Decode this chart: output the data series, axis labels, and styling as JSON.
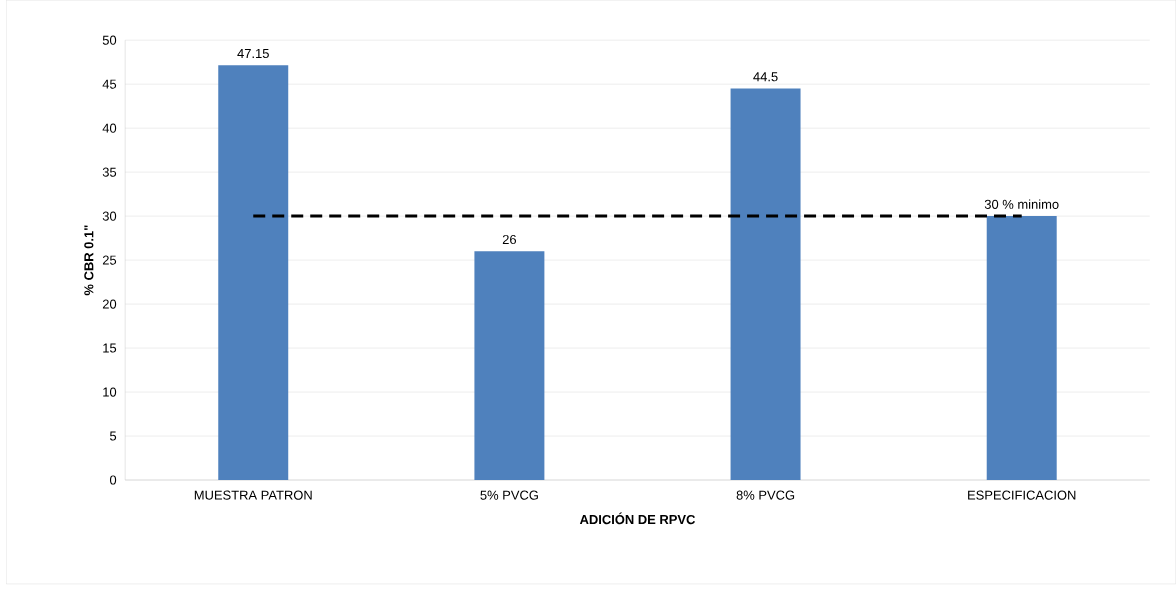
{
  "chart_data": {
    "type": "bar",
    "categories": [
      "MUESTRA PATRON",
      "5% PVCG",
      "8% PVCG",
      "ESPECIFICACION"
    ],
    "values": [
      47.15,
      26,
      44.5,
      30
    ],
    "value_labels": [
      "47.15",
      "26",
      "44.5",
      "30 % minimo"
    ],
    "color": "#4f81bd",
    "xlabel": "ADICIÓN DE RPVC",
    "ylabel": "% CBR 0.1\"",
    "ylim": [
      0,
      50
    ],
    "yticks": [
      0,
      5,
      10,
      15,
      20,
      25,
      30,
      35,
      40,
      45,
      50
    ],
    "grid": "y",
    "ref_lines": [
      {
        "axis": "y",
        "value": 30,
        "color": "#000000",
        "line_style": "dashed"
      }
    ]
  }
}
